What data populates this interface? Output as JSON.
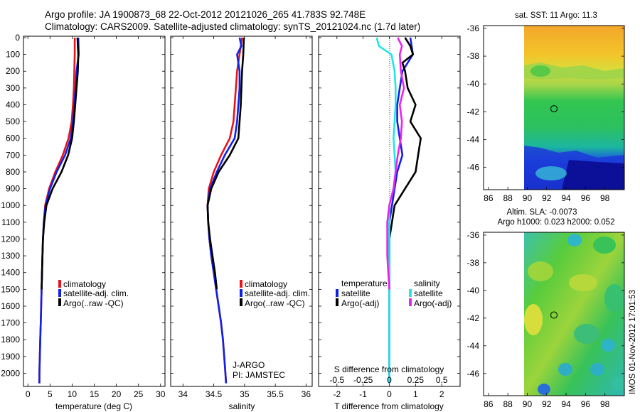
{
  "header": {
    "line1": "Argo profile: JA 1900873_68 22-Oct-2012 20121026_265 41.783S 92.748E",
    "line2": "Climatology: CARS2009. Satellite-adjusted climatology: synTS_20121024.nc (1.7d later)"
  },
  "depth_ticks": [
    "0",
    "100",
    "200",
    "300",
    "400",
    "500",
    "600",
    "700",
    "800",
    "900",
    "1000",
    "1100",
    "1200",
    "1300",
    "1400",
    "1500",
    "1600",
    "1700",
    "1800",
    "1900",
    "2000"
  ],
  "legend": {
    "climatology": "climatology",
    "satellite": "satellite-adj. clim.",
    "argo": "Argo(..raw -QC)"
  },
  "credit": {
    "line1": "J-ARGO",
    "line2": "PI: JAMSTEC"
  },
  "diff_legend": {
    "temp_title": "temperature",
    "sal_title": "salinity",
    "sat": "satellite",
    "argo": "Argo(-adj)"
  },
  "colors": {
    "climatology": "#e8141b",
    "satellite": "#1020e6",
    "argo": "#000000",
    "sal_sat": "#22e6e6",
    "sal_argo": "#ee22ee"
  },
  "map_top": {
    "title": "sat. SST: 11  Argo: 11.3",
    "yticks": [
      "-36",
      "-38",
      "-40",
      "-42",
      "-44",
      "-46"
    ],
    "xticks": [
      "86",
      "88",
      "90",
      "92",
      "94",
      "96",
      "98"
    ]
  },
  "map_bottom": {
    "title1": "Altim. SLA: -0.0073",
    "title2": "Argo h1000: 0.023 h2000: 0.052",
    "yticks": [
      "-36",
      "-38",
      "-40",
      "-42",
      "-44",
      "-46"
    ],
    "xticks": [
      "86",
      "88",
      "90",
      "92",
      "94",
      "96",
      "98"
    ]
  },
  "side_stamp": "IMOS 01-Nov-2012 17:01:53",
  "chart_data": [
    {
      "type": "line",
      "xlabel": "temperature (deg C)",
      "ylabel": "depth",
      "xlim": [
        -1,
        31
      ],
      "ylim": [
        0,
        2070
      ],
      "xticks": [
        "0",
        "5",
        "10",
        "15",
        "20",
        "25",
        "30"
      ],
      "series": [
        {
          "name": "climatology",
          "depth": [
            0,
            100,
            200,
            300,
            400,
            500,
            600,
            700,
            800,
            900,
            1000,
            1100,
            1200,
            1300,
            1400,
            1500,
            1600,
            1700,
            1800,
            1900,
            2000,
            2060
          ],
          "values": [
            10.6,
            10.6,
            10.5,
            10.4,
            10.2,
            9.9,
            9.2,
            7.9,
            6.2,
            4.8,
            3.9,
            3.6,
            3.4,
            3.3,
            3.2,
            3.1,
            3.0,
            2.9,
            2.8,
            2.7,
            2.6,
            2.6
          ]
        },
        {
          "name": "satellite-adj. clim.",
          "depth": [
            0,
            100,
            200,
            300,
            400,
            500,
            600,
            700,
            800,
            900,
            1000,
            1100,
            1200,
            1300,
            1400,
            1500,
            1600,
            1700,
            1800,
            1900,
            2000,
            2060
          ],
          "values": [
            11.4,
            11.5,
            11.0,
            10.8,
            10.5,
            10.2,
            9.7,
            8.4,
            6.5,
            5.0,
            4.0,
            3.6,
            3.4,
            3.3,
            3.2,
            3.1,
            3.0,
            2.9,
            2.8,
            2.7,
            2.6,
            2.6
          ]
        },
        {
          "name": "Argo(..raw -QC)",
          "depth": [
            0,
            100,
            200,
            300,
            400,
            500,
            600,
            700,
            800,
            900,
            1000,
            1100,
            1200,
            1300,
            1400,
            1500
          ],
          "values": [
            11.2,
            11.4,
            11.3,
            11.0,
            10.7,
            10.4,
            10.0,
            9.1,
            7.6,
            5.6,
            4.2,
            3.7,
            3.4,
            3.3,
            3.2,
            3.1
          ]
        }
      ]
    },
    {
      "type": "line",
      "xlabel": "salinity",
      "xlim": [
        33.8,
        36.1
      ],
      "ylim": [
        0,
        2070
      ],
      "xticks": [
        "34",
        "34.5",
        "35",
        "35.5",
        "36"
      ],
      "series": [
        {
          "name": "climatology",
          "depth": [
            0,
            100,
            200,
            300,
            400,
            500,
            600,
            700,
            800,
            900,
            1000,
            1100,
            1200,
            1300,
            1400,
            1500,
            1600,
            1700,
            1800,
            1900,
            2000,
            2060
          ],
          "values": [
            34.96,
            34.92,
            34.88,
            34.86,
            34.84,
            34.82,
            34.76,
            34.62,
            34.5,
            34.42,
            34.4,
            34.41,
            34.43,
            34.46,
            34.5,
            34.54,
            34.58,
            34.62,
            34.65,
            34.67,
            34.69,
            34.7
          ]
        },
        {
          "name": "satellite-adj. clim.",
          "depth": [
            0,
            50,
            100,
            200,
            300,
            400,
            500,
            600,
            700,
            800,
            900,
            1000,
            1100,
            1200,
            1300,
            1400,
            1500,
            1600,
            1700,
            1800,
            1900,
            2000,
            2060
          ],
          "values": [
            34.92,
            34.95,
            34.88,
            34.92,
            34.92,
            34.9,
            34.88,
            34.84,
            34.68,
            34.55,
            34.44,
            34.4,
            34.41,
            34.43,
            34.46,
            34.5,
            34.54,
            34.58,
            34.62,
            34.65,
            34.67,
            34.69,
            34.7
          ]
        },
        {
          "name": "Argo(..raw -QC)",
          "depth": [
            0,
            100,
            200,
            300,
            400,
            500,
            600,
            700,
            800,
            900,
            1000,
            1100,
            1200,
            1300,
            1400,
            1500
          ],
          "values": [
            34.99,
            34.98,
            34.96,
            34.95,
            34.94,
            34.92,
            34.9,
            34.76,
            34.58,
            34.46,
            34.4,
            34.41,
            34.44,
            34.48,
            34.52,
            34.55
          ]
        }
      ]
    },
    {
      "type": "line",
      "xlabel": "T difference from climatology",
      "x2label": "S difference from climatology",
      "xlim": [
        -2.7,
        2.7
      ],
      "ylim": [
        0,
        2070
      ],
      "xticks": [
        "-2",
        "-1",
        "0",
        "1",
        "2"
      ],
      "x2ticks": [
        "-0.5",
        "-0.25",
        "0",
        "0.25",
        "0.5"
      ],
      "series": [
        {
          "name": "temperature satellite",
          "depth": [
            0,
            100,
            200,
            300,
            400,
            500,
            600,
            700,
            800,
            900,
            1000,
            1100,
            1200,
            1300,
            1400,
            1500,
            1600,
            1700,
            1800,
            1900,
            2000,
            2060
          ],
          "values": [
            0.8,
            0.9,
            0.5,
            0.4,
            0.3,
            0.3,
            0.4,
            0.5,
            0.3,
            0.2,
            0.1,
            0.0,
            0.0,
            0.0,
            0.0,
            0.0,
            0.0,
            0.0,
            0.0,
            0.0,
            0.0,
            0.0
          ]
        },
        {
          "name": "temperature Argo(-adj)",
          "depth": [
            0,
            50,
            100,
            150,
            200,
            300,
            400,
            500,
            600,
            700,
            800,
            900,
            1000,
            1100,
            1200,
            1300,
            1400,
            1500
          ],
          "values": [
            0.6,
            0.8,
            0.9,
            0.5,
            0.6,
            0.7,
            1.0,
            0.8,
            1.2,
            1.1,
            1.0,
            0.6,
            0.2,
            0.1,
            0.0,
            0.0,
            0.0,
            0.0
          ]
        },
        {
          "name": "salinity satellite",
          "depth": [
            0,
            50,
            100,
            200,
            300,
            400,
            500,
            600,
            700,
            800,
            900,
            1000,
            1100,
            1200,
            1300,
            1400,
            1500,
            1600,
            1700,
            1800,
            1900,
            2000,
            2060
          ],
          "values": [
            -0.12,
            -0.1,
            0.02,
            0.05,
            0.06,
            0.06,
            0.05,
            0.04,
            0.05,
            0.06,
            0.04,
            0.0,
            0.0,
            0.0,
            0.0,
            0.0,
            0.0,
            0.0,
            0.0,
            0.0,
            0.0,
            0.0,
            0.0
          ]
        },
        {
          "name": "salinity Argo(-adj)",
          "depth": [
            0,
            50,
            100,
            200,
            300,
            400,
            500,
            600,
            700,
            800,
            900,
            1000,
            1100,
            1200,
            1300,
            1400,
            1500
          ],
          "values": [
            0.08,
            0.12,
            0.1,
            0.11,
            0.14,
            0.1,
            0.12,
            0.11,
            0.08,
            0.06,
            0.04,
            0.0,
            -0.02,
            -0.02,
            -0.02,
            -0.01,
            0.0
          ]
        }
      ]
    },
    {
      "type": "heatmap",
      "title": "sat. SST: 11  Argo: 11.3",
      "xlim": [
        85.5,
        100
      ],
      "ylim": [
        -47.6,
        -35.8
      ],
      "marker": {
        "lon": 92.75,
        "lat": -41.78
      }
    },
    {
      "type": "heatmap",
      "title": "Altim. SLA: -0.0073 / Argo h1000: 0.023 h2000: 0.052",
      "xlim": [
        85.5,
        100
      ],
      "ylim": [
        -47.6,
        -35.8
      ],
      "marker": {
        "lon": 92.75,
        "lat": -41.78
      }
    }
  ]
}
